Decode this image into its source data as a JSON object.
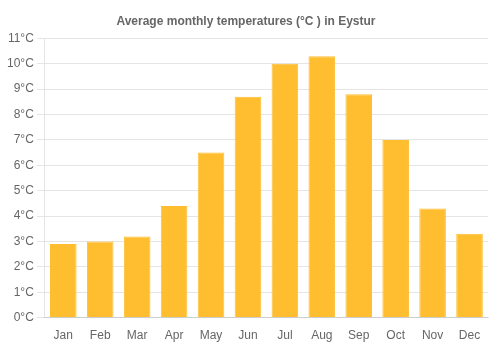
{
  "chart_data": {
    "type": "bar",
    "title": "Average monthly temperatures (°C ) in Eystur",
    "categories": [
      "Jan",
      "Feb",
      "Mar",
      "Apr",
      "May",
      "Jun",
      "Jul",
      "Aug",
      "Sep",
      "Oct",
      "Nov",
      "Dec"
    ],
    "values": [
      2.9,
      3.0,
      3.2,
      4.4,
      6.5,
      8.7,
      10.0,
      10.3,
      8.8,
      7.0,
      4.3,
      3.3
    ],
    "color": "#FFBE30",
    "ylim": [
      0,
      11
    ],
    "yticks": [
      {
        "value": 0,
        "label": "0°C"
      },
      {
        "value": 1,
        "label": "1°C"
      },
      {
        "value": 2,
        "label": "2°C"
      },
      {
        "value": 3,
        "label": "3°C"
      },
      {
        "value": 4,
        "label": "4°C"
      },
      {
        "value": 5,
        "label": "5°C"
      },
      {
        "value": 6,
        "label": "6°C"
      },
      {
        "value": 7,
        "label": "7°C"
      },
      {
        "value": 8,
        "label": "8°C"
      },
      {
        "value": 9,
        "label": "9°C"
      },
      {
        "value": 10,
        "label": "10°C"
      },
      {
        "value": 11,
        "label": "11°C"
      }
    ],
    "grid": true
  }
}
